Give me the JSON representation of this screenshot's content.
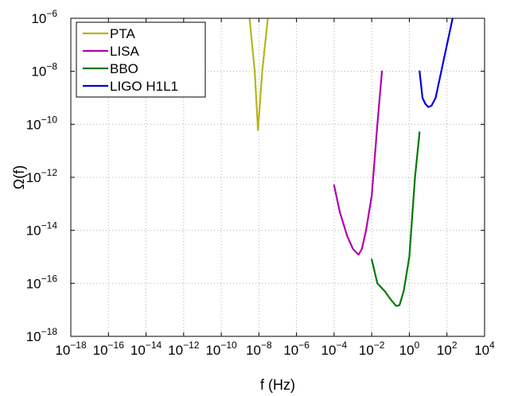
{
  "chart_data": {
    "type": "line",
    "xlabel": "f (Hz)",
    "ylabel": "Ω(f)",
    "x_scale": "log",
    "y_scale": "log",
    "xlim": [
      1e-18,
      10000.0
    ],
    "ylim": [
      1e-18,
      1e-06
    ],
    "grid": true,
    "legend_position": "top-left",
    "x_ticks": [
      {
        "value": 1e-18,
        "base": "10",
        "exp": "−18"
      },
      {
        "value": 1e-16,
        "base": "10",
        "exp": "−16"
      },
      {
        "value": 1e-14,
        "base": "10",
        "exp": "−14"
      },
      {
        "value": 1e-12,
        "base": "10",
        "exp": "−12"
      },
      {
        "value": 1e-10,
        "base": "10",
        "exp": "−10"
      },
      {
        "value": 1e-08,
        "base": "10",
        "exp": "−8"
      },
      {
        "value": 1e-06,
        "base": "10",
        "exp": "−6"
      },
      {
        "value": 0.0001,
        "base": "10",
        "exp": "−4"
      },
      {
        "value": 0.01,
        "base": "10",
        "exp": "−2"
      },
      {
        "value": 1,
        "base": "10",
        "exp": "0"
      },
      {
        "value": 100.0,
        "base": "10",
        "exp": "2"
      },
      {
        "value": 10000.0,
        "base": "10",
        "exp": "4"
      }
    ],
    "y_ticks": [
      {
        "value": 1e-18,
        "base": "10",
        "exp": "−18"
      },
      {
        "value": 1e-16,
        "base": "10",
        "exp": "−16"
      },
      {
        "value": 1e-14,
        "base": "10",
        "exp": "−14"
      },
      {
        "value": 1e-12,
        "base": "10",
        "exp": "−12"
      },
      {
        "value": 1e-10,
        "base": "10",
        "exp": "−10"
      },
      {
        "value": 1e-08,
        "base": "10",
        "exp": "−8"
      },
      {
        "value": 1e-06,
        "base": "10",
        "exp": "−6"
      }
    ],
    "series": [
      {
        "name": "PTA",
        "color": "#b5b51e",
        "x": [
          3.2e-09,
          6e-09,
          9e-09,
          1.5e-08,
          3e-08
        ],
        "y": [
          1e-06,
          1e-08,
          6e-11,
          1e-08,
          1e-06
        ]
      },
      {
        "name": "LISA",
        "color": "#b000b0",
        "x": [
          0.0001,
          0.0002,
          0.0005,
          0.001,
          0.002,
          0.003,
          0.005,
          0.01,
          0.02,
          0.035
        ],
        "y": [
          5e-13,
          5e-14,
          6e-15,
          2e-15,
          1.2e-15,
          2e-15,
          1e-14,
          2e-13,
          1e-10,
          1e-08
        ]
      },
      {
        "name": "BBO",
        "color": "#007a00",
        "x": [
          0.01,
          0.02,
          0.05,
          0.1,
          0.2,
          0.3,
          0.5,
          1,
          2,
          3.5
        ],
        "y": [
          8e-16,
          1e-16,
          5e-17,
          2.5e-17,
          1.4e-17,
          1.5e-17,
          5e-17,
          1e-15,
          1e-12,
          5e-11
        ]
      },
      {
        "name": "LIGO H1L1",
        "color": "#0000e0",
        "x": [
          3.5,
          5,
          7,
          10,
          15,
          25,
          50,
          100,
          200
        ],
        "y": [
          1e-08,
          1e-09,
          6e-10,
          4.5e-10,
          5e-10,
          1e-09,
          1e-08,
          1e-07,
          1e-06
        ]
      }
    ]
  }
}
